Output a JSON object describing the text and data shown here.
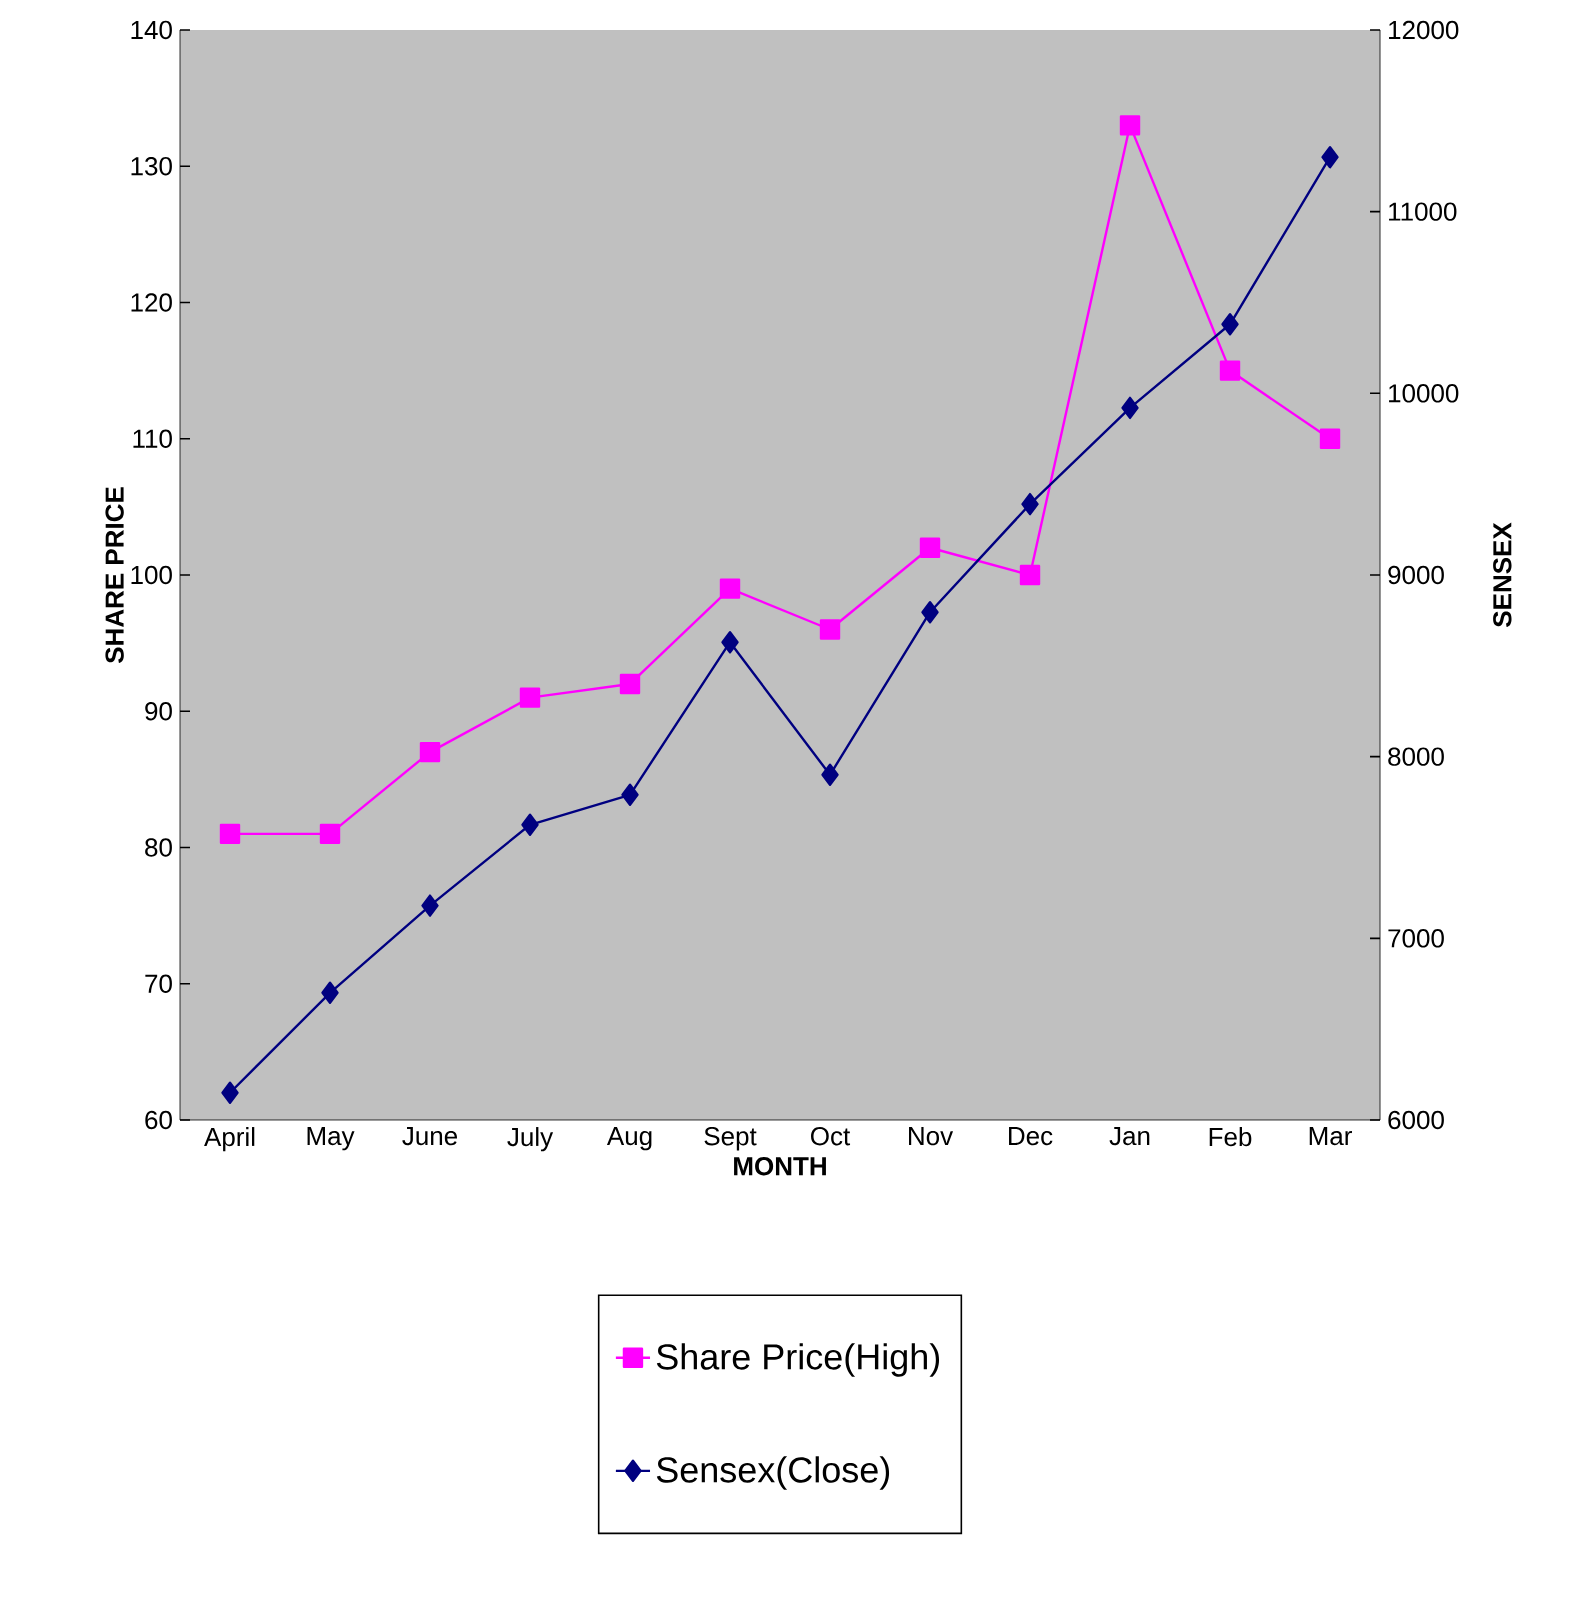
{
  "chart_data": {
    "type": "line",
    "xlabel": "MONTH",
    "ylabel": "SHARE PRICE",
    "y2label": "SENSEX",
    "categories": [
      "April",
      "May",
      "June",
      "July",
      "Aug",
      "Sept",
      "Oct",
      "Nov",
      "Dec",
      "Jan",
      "Feb",
      "Mar"
    ],
    "series": [
      {
        "name": "Share Price(High)",
        "color": "#ff00ff",
        "marker": "square",
        "values": [
          81,
          81,
          87,
          91,
          92,
          99,
          96,
          102,
          100,
          133,
          115,
          110
        ]
      },
      {
        "name": "Sensex(Close)",
        "color": "#000080",
        "marker": "diamond",
        "axis": "y2",
        "values": [
          6150,
          6700,
          7180,
          7625,
          7790,
          8630,
          7900,
          8795,
          9390,
          9920,
          10380,
          11300
        ]
      }
    ],
    "ylim": [
      60,
      140
    ],
    "yticks": [
      60,
      70,
      80,
      90,
      100,
      110,
      120,
      130,
      140
    ],
    "y2lim": [
      6000,
      12000
    ],
    "y2ticks": [
      6000,
      7000,
      8000,
      9000,
      10000,
      11000,
      12000
    ],
    "grid": false,
    "legend": "bottom",
    "line_style": "solid"
  }
}
